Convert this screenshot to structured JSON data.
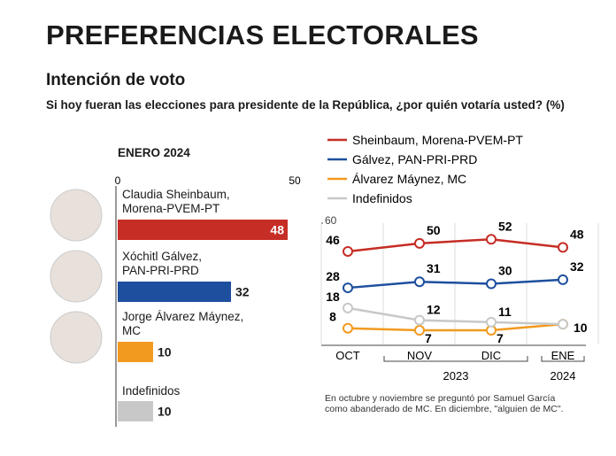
{
  "header": {
    "title": "PREFERENCIAS ELECTORALES",
    "subtitle": "Intención de voto",
    "question": "Si hoy fueran las elecciones para presidente de la República, ¿por quién votaría usted? (%)"
  },
  "chart_data": [
    {
      "type": "hbar",
      "title": "ENERO 2024",
      "categories": [
        "Claudia Sheinbaum,\nMorena-PVEM-PT",
        "Xóchitl Gálvez,\nPAN-PRI-PRD",
        "Jorge Álvarez Máynez,\nMC",
        "Indefinidos"
      ],
      "values": [
        48,
        32,
        10,
        10
      ],
      "colors": [
        "#c62d25",
        "#1e4f9e",
        "#f29a1f",
        "#c8c8c8"
      ],
      "xlim": [
        0,
        50
      ],
      "xticks": [
        0,
        50
      ]
    },
    {
      "type": "line",
      "categories": [
        "OCT",
        "NOV",
        "DIC",
        "ENE"
      ],
      "years": [
        "2023",
        "2024"
      ],
      "ylim": [
        0,
        60
      ],
      "yticks": [
        60
      ],
      "series": [
        {
          "name": "Sheinbaum, Morena-PVEM-PT",
          "color": "#c62d25",
          "values": [
            46,
            50,
            52,
            48
          ]
        },
        {
          "name": "Gálvez, PAN-PRI-PRD",
          "color": "#1e4f9e",
          "values": [
            28,
            31,
            30,
            32
          ]
        },
        {
          "name": "Álvarez Máynez, MC",
          "color": "#f29a1f",
          "values": [
            8,
            7,
            7,
            10
          ]
        },
        {
          "name": "Indefinidos",
          "color": "#c8c8c8",
          "values": [
            18,
            12,
            11,
            10
          ]
        }
      ]
    }
  ],
  "note": "En octubre y noviembre se preguntó por Samuel García como abanderado de MC. En diciembre, \"alguien de MC\"."
}
